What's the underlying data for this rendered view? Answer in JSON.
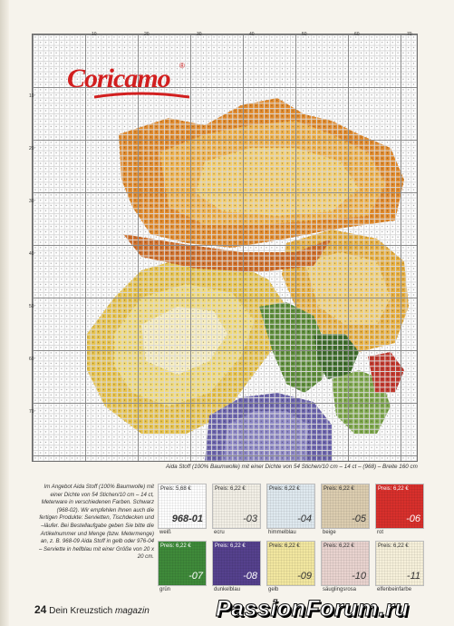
{
  "logo": {
    "text": "Coricamo",
    "reg": "®"
  },
  "axis": {
    "top": [
      "10",
      "20",
      "30",
      "40",
      "50",
      "60",
      "70"
    ],
    "left": [
      "10",
      "20",
      "30",
      "40",
      "50",
      "60",
      "70"
    ]
  },
  "caption": "Aida Stoff (100% Baumwolle) mit einer Dichte von 54 Stichen/10 cm – 14 ct – (968) – Breite 160 cm",
  "info_text": "Im Angebot Aida Stoff (100% Baumwolle) mit einer Dichte von 54 Stichen/10 cm – 14 ct, Meterware in verschiedenen Farben. Schwarz (968-02). Wir empfehlen Ihnen auch die fertigen Produkte: Servietten, Tischdecken und –läufer. Bei Bestellaufgabe geben Sie bitte die Artikelnummer und Menge (bzw. Metermenge) an, z. B. 968-09 Aida Stoff in gelb oder 976-04 – Serviette in hellblau mit einer Größe von 20 x 20 cm.",
  "swatches": [
    {
      "price": "Preis: 5,68 €",
      "code": "968-01",
      "label": "weiß",
      "color": "#ffffff"
    },
    {
      "price": "Preis: 6,22 €",
      "code": "-03",
      "label": "ecru",
      "color": "#f2efe6"
    },
    {
      "price": "Preis: 6,22 €",
      "code": "-04",
      "label": "himmelblau",
      "color": "#dfe9ef"
    },
    {
      "price": "Preis: 6,22 €",
      "code": "-05",
      "label": "beige",
      "color": "#dccdb0"
    },
    {
      "price": "Preis: 6,22 €",
      "code": "-06",
      "label": "rot",
      "color": "#d8302c"
    },
    {
      "price": "Preis: 6,22 €",
      "code": "-07",
      "label": "grün",
      "color": "#3f8a3a"
    },
    {
      "price": "Preis: 6,22 €",
      "code": "-08",
      "label": "dunkelblau",
      "color": "#55418d"
    },
    {
      "price": "Preis: 6,22 €",
      "code": "-09",
      "label": "gelb",
      "color": "#f2e7a0"
    },
    {
      "price": "Preis: 6,22 €",
      "code": "-10",
      "label": "säuglingsrosa",
      "color": "#e9d3cf"
    },
    {
      "price": "Preis: 6,22 €",
      "code": "-11",
      "label": "elfenbeinfarbe",
      "color": "#f6f0da"
    }
  ],
  "footer": {
    "page": "24",
    "magazine": "Dein Kreuzstich",
    "suffix": "magazin"
  },
  "watermark": "PassionForum.ru"
}
